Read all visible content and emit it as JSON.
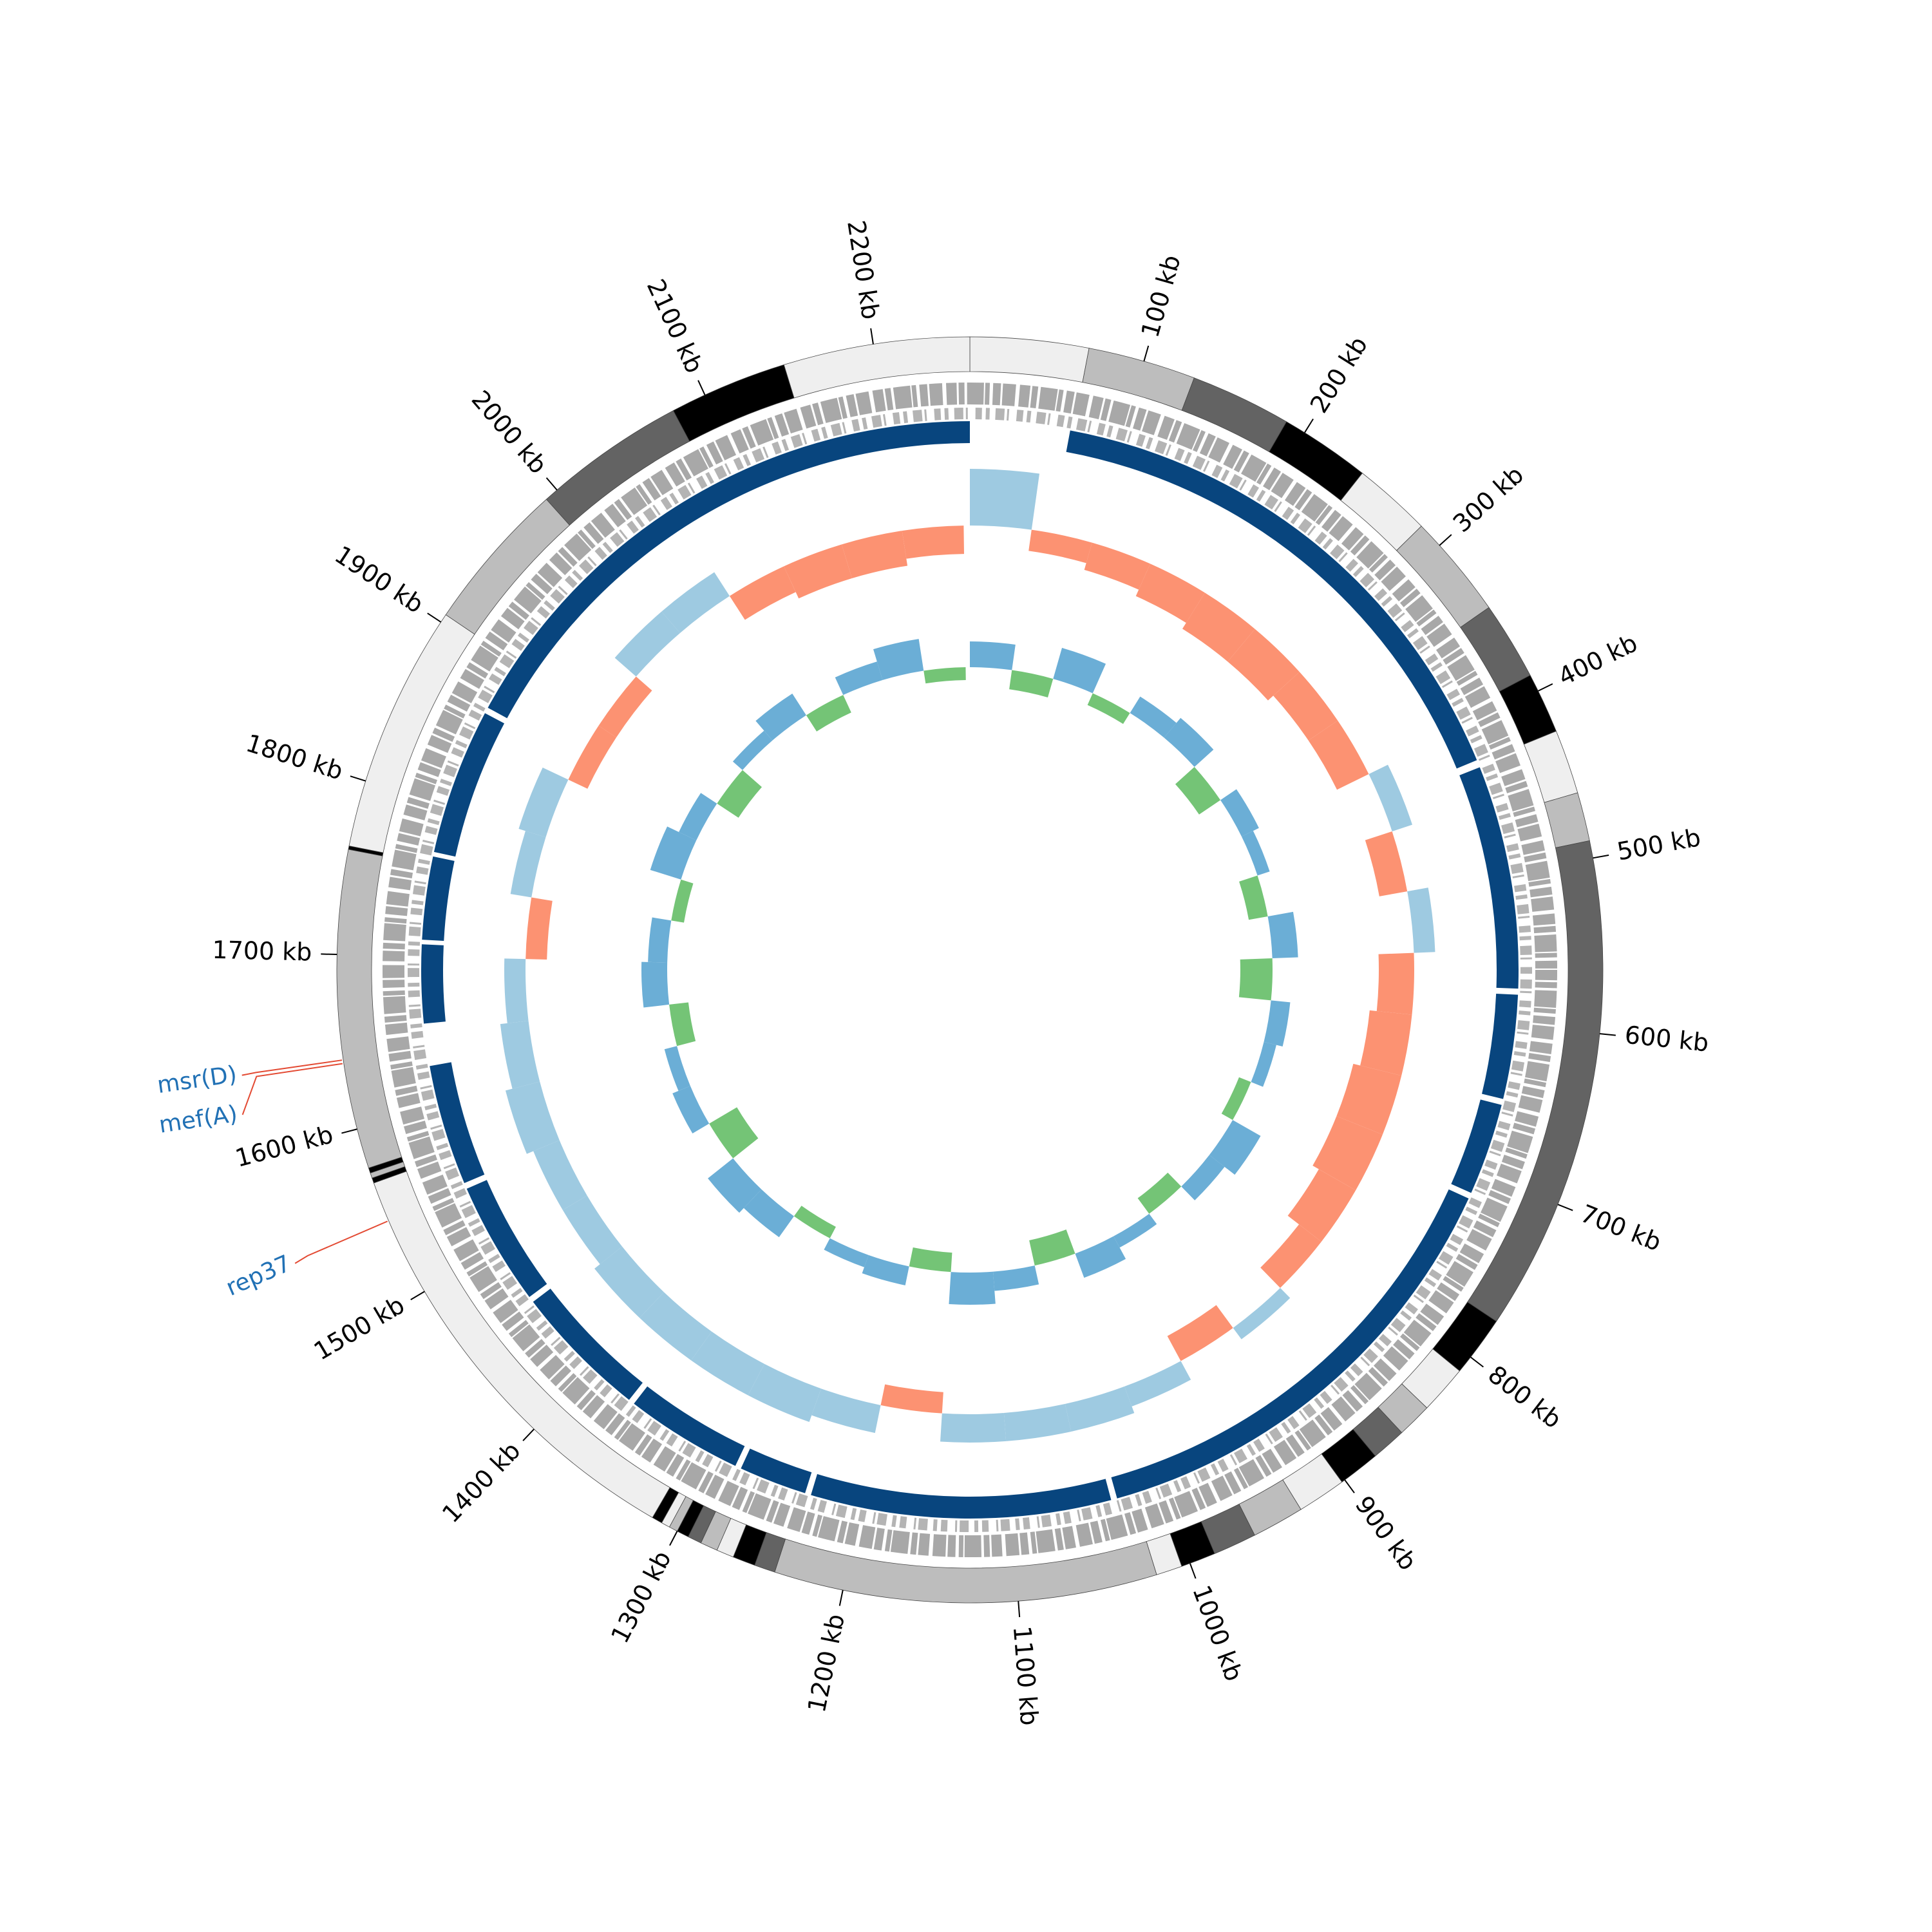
{
  "chart_data": {
    "type": "circular-genome",
    "xlim": [
      0,
      2255
    ],
    "xticks": [
      {
        "value": 100,
        "label": "100 kb"
      },
      {
        "value": 200,
        "label": "200 kb"
      },
      {
        "value": 300,
        "label": "300 kb"
      },
      {
        "value": 400,
        "label": "400 kb"
      },
      {
        "value": 500,
        "label": "500 kb"
      },
      {
        "value": 600,
        "label": "600 kb"
      },
      {
        "value": 700,
        "label": "700 kb"
      },
      {
        "value": 800,
        "label": "800 kb"
      },
      {
        "value": 900,
        "label": "900 kb"
      },
      {
        "value": 1000,
        "label": "1000 kb"
      },
      {
        "value": 1100,
        "label": "1100 kb"
      },
      {
        "value": 1200,
        "label": "1200 kb"
      },
      {
        "value": 1300,
        "label": "1300 kb"
      },
      {
        "value": 1400,
        "label": "1400 kb"
      },
      {
        "value": 1500,
        "label": "1500 kb"
      },
      {
        "value": 1600,
        "label": "1600 kb"
      },
      {
        "value": 1700,
        "label": "1700 kb"
      },
      {
        "value": 1800,
        "label": "1800 kb"
      },
      {
        "value": 1900,
        "label": "1900 kb"
      },
      {
        "value": 2000,
        "label": "2000 kb"
      },
      {
        "value": 2100,
        "label": "2100 kb"
      },
      {
        "value": 2200,
        "label": "2200 kb"
      }
    ],
    "contigs": [
      [
        0,
        68,
        "#efefef"
      ],
      [
        68,
        130,
        "#bdbdbd"
      ],
      [
        130,
        188,
        "#636363"
      ],
      [
        188,
        240,
        "#000000"
      ],
      [
        240,
        285,
        "#efefef"
      ],
      [
        285,
        345,
        "#bdbdbd"
      ],
      [
        345,
        390,
        "#636363"
      ],
      [
        390,
        425,
        "#000000"
      ],
      [
        425,
        462,
        "#efefef"
      ],
      [
        462,
        490,
        "#bdbdbd"
      ],
      [
        490,
        775,
        "#636363"
      ],
      [
        775,
        810,
        "#000000"
      ],
      [
        810,
        838,
        "#efefef"
      ],
      [
        838,
        858,
        "#bdbdbd"
      ],
      [
        858,
        878,
        "#636363"
      ],
      [
        878,
        902,
        "#000000"
      ],
      [
        902,
        930,
        "#efefef"
      ],
      [
        930,
        960,
        "#bdbdbd"
      ],
      [
        960,
        985,
        "#636363"
      ],
      [
        985,
        1005,
        "#000000"
      ],
      [
        1005,
        1020,
        "#efefef"
      ],
      [
        1020,
        1240,
        "#bdbdbd"
      ],
      [
        1240,
        1252,
        "#636363"
      ],
      [
        1252,
        1265,
        "#000000"
      ],
      [
        1265,
        1275,
        "#efefef"
      ],
      [
        1275,
        1285,
        "#bdbdbd"
      ],
      [
        1285,
        1293,
        "#636363"
      ],
      [
        1293,
        1300,
        "#000000"
      ],
      [
        1300,
        1305,
        "#bdbdbd"
      ],
      [
        1305,
        1310,
        "#efefef"
      ],
      [
        1310,
        1316,
        "#000000"
      ],
      [
        1316,
        1568,
        "#efefef"
      ],
      [
        1568,
        1571,
        "#000000"
      ],
      [
        1571,
        1574,
        "#bdbdbd"
      ],
      [
        1574,
        1577,
        "#000000"
      ],
      [
        1577,
        1760,
        "#bdbdbd"
      ],
      [
        1760,
        1762,
        "#000000"
      ],
      [
        1762,
        1905,
        "#efefef"
      ],
      [
        1905,
        1992,
        "#bdbdbd"
      ],
      [
        1992,
        2080,
        "#636363"
      ],
      [
        2080,
        2148,
        "#000000"
      ],
      [
        2148,
        2255,
        "#efefef"
      ]
    ],
    "coverage_color": "#08457e",
    "coverage_segments": [
      [
        66,
        423
      ],
      [
        428,
        576
      ],
      [
        580,
        649
      ],
      [
        653,
        714
      ],
      [
        718,
        1030
      ],
      [
        1034,
        1233
      ],
      [
        1237,
        1282
      ],
      [
        1286,
        1364
      ],
      [
        1368,
        1458
      ],
      [
        1462,
        1544
      ],
      [
        1548,
        1628
      ],
      [
        1656,
        1708
      ],
      [
        1711,
        1766
      ],
      [
        1769,
        1866
      ],
      [
        1870,
        2255
      ]
    ],
    "bins": [
      0,
      50,
      100,
      150,
      200,
      250,
      300,
      350,
      400,
      450,
      500,
      550,
      600,
      650,
      700,
      750,
      800,
      850,
      900,
      950,
      1000,
      1050,
      1100,
      1150,
      1200,
      1250,
      1300,
      1350,
      1400,
      1450,
      1500,
      1550,
      1600,
      1650,
      1700,
      1750,
      1800,
      1850,
      1900,
      1950,
      2000,
      2050,
      2100,
      2150,
      2200,
      2250
    ],
    "track_ylim": [
      -1,
      1
    ],
    "gc_skew_colors": [
      "#9ecae1",
      "#fc9272"
    ],
    "gc_skew_values": [
      0.8,
      -0.3,
      -0.4,
      -0.5,
      -0.6,
      -0.6,
      -0.5,
      -0.5,
      0.3,
      -0.4,
      0.3,
      -0.5,
      -0.6,
      -0.7,
      -0.7,
      -0.6,
      -0.4,
      0.2,
      -0.4,
      0.3,
      0.4,
      0.4,
      0.4,
      -0.3,
      0.4,
      0.5,
      0.5,
      0.5,
      0.5,
      0.4,
      0.4,
      0.5,
      0.4,
      0.3,
      -0.3,
      0.3,
      0.4,
      -0.3,
      -0.3,
      0.4,
      0.4,
      -0.4,
      -0.5,
      -0.5,
      -0.4
    ],
    "gc_content_colors": [
      "#6baed6",
      "#74c476"
    ],
    "gc_content_values": [
      0.4,
      -0.3,
      0.5,
      -0.2,
      0.3,
      0.4,
      -0.4,
      0.3,
      0.2,
      -0.3,
      0.4,
      -0.5,
      0.3,
      0.2,
      -0.2,
      0.5,
      0.3,
      -0.3,
      0.2,
      0.4,
      -0.4,
      0.3,
      0.5,
      -0.3,
      0.3,
      0.2,
      -0.2,
      0.4,
      0.5,
      -0.5,
      0.3,
      0.2,
      -0.3,
      0.4,
      0.3,
      -0.2,
      0.5,
      0.3,
      -0.4,
      0.2,
      0.4,
      -0.3,
      0.3,
      0.5,
      -0.2
    ],
    "annotations": [
      {
        "label": "msr(D)",
        "position": 1640
      },
      {
        "label": "mef(A)",
        "position": 1638
      },
      {
        "label": "rep37",
        "position": 1545
      }
    ],
    "annotation_color": "#2171b5",
    "annotation_line_color": "#e34a33"
  }
}
